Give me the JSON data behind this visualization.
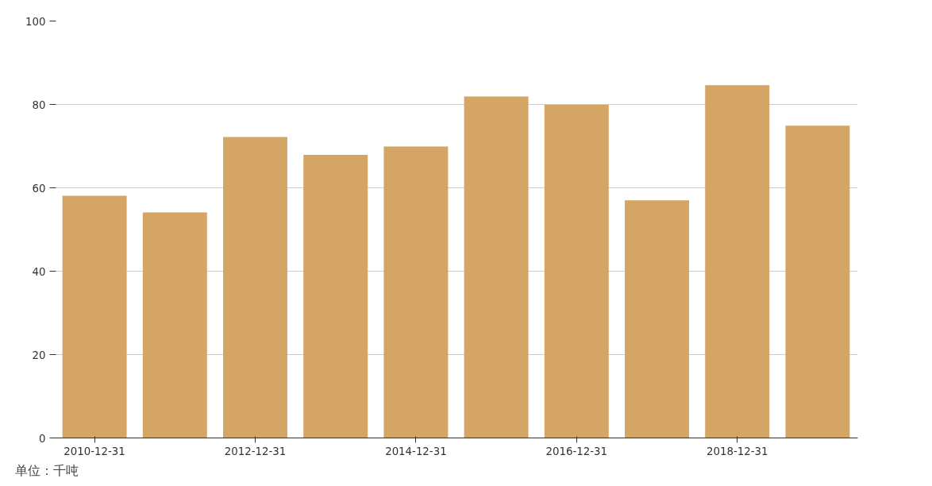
{
  "chart_data": {
    "type": "bar",
    "categories": [
      "2010-12-31",
      null,
      "2012-12-31",
      null,
      "2014-12-31",
      null,
      "2016-12-31",
      null,
      "2018-12-31",
      null
    ],
    "values": [
      58.1,
      54.1,
      72.2,
      67.9,
      69.9,
      81.9,
      79.9,
      57.0,
      84.6,
      74.9
    ],
    "color": "#d4a565",
    "ylim": [
      0,
      100
    ],
    "yticks": [
      0,
      20,
      40,
      60,
      80,
      100
    ],
    "grid": "y",
    "annotations": [
      "单位：千吨"
    ]
  }
}
